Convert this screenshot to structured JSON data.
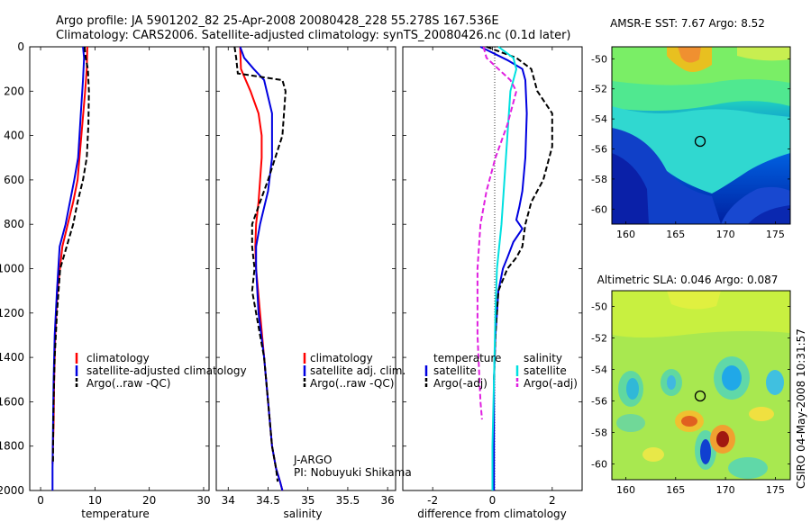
{
  "header": {
    "line1": "Argo profile: JA 5901202_82 25-Apr-2008 20080428_228 55.278S 167.536E",
    "line2": "Climatology: CARS2006. Satellite-adjusted climatology: synTS_20080426.nc (0.1d later)"
  },
  "colors": {
    "climatology": "#ff0000",
    "satellite": "#0000e0",
    "argo": "#000000",
    "sat_diff_salinity": "#00e0e0",
    "argo_diff_salinity": "#e020e0"
  },
  "y_axis": {
    "label": "",
    "range": [
      0,
      2000
    ],
    "ticks": [
      "0",
      "200",
      "400",
      "600",
      "800",
      "1000",
      "1200",
      "1400",
      "1600",
      "1800",
      "2000"
    ],
    "inverted": true
  },
  "panels": [
    {
      "id": "temperature",
      "xlabel": "temperature",
      "xlim": [
        -2,
        31
      ],
      "xticks": [
        "0",
        "10",
        "20",
        "30"
      ],
      "legend": [
        "climatology",
        "satellite-adjusted climatology",
        "Argo(..raw -QC)"
      ]
    },
    {
      "id": "salinity",
      "xlabel": "salinity",
      "xlim": [
        33.85,
        36.1
      ],
      "xticks": [
        "34",
        "34.5",
        "35",
        "35.5",
        "36"
      ],
      "legend": [
        "climatology",
        "satellite adj. clim.",
        "Argo(..raw -QC)"
      ],
      "annotation": [
        "J-ARGO",
        "PI: Nobuyuki Shikama"
      ]
    },
    {
      "id": "difference",
      "xlabel": "difference from climatology",
      "xlim": [
        -3.0,
        3.0
      ],
      "xticks": [
        "-2",
        "0",
        "2"
      ],
      "legend_headers": [
        "temperature",
        "salinity"
      ],
      "legend_left": [
        "satellite",
        "Argo(-adj)"
      ],
      "legend_right": [
        "satellite",
        "Argo(-adj)"
      ]
    }
  ],
  "maps": [
    {
      "id": "sst",
      "title": "AMSR-E SST: 7.67 Argo: 8.52",
      "yticks": [
        "-50",
        "-52",
        "-54",
        "-56",
        "-58",
        "-60"
      ],
      "xticks": [
        "160",
        "165",
        "170",
        "175"
      ],
      "profile_location": {
        "lon": 167.536,
        "lat": -55.278
      }
    },
    {
      "id": "sla",
      "title": "Altimetric SLA: 0.046 Argo: 0.087",
      "yticks": [
        "-50",
        "-52",
        "-54",
        "-56",
        "-58",
        "-60"
      ],
      "xticks": [
        "160",
        "165",
        "170",
        "175"
      ],
      "profile_location": {
        "lon": 167.536,
        "lat": -55.278
      }
    }
  ],
  "credit": "CSIRO 04-May-2008 10:31:57",
  "chart_data": [
    {
      "type": "line",
      "panel": "temperature",
      "xlabel": "temperature",
      "ylabel": "",
      "xlim": [
        -2,
        31
      ],
      "ylim": [
        2000,
        0
      ],
      "series": [
        {
          "name": "climatology",
          "style": "solid",
          "color": "#ff0000",
          "x": [
            8.6,
            8.5,
            8.2,
            7.5,
            6.8,
            6.0,
            5.0,
            4.0,
            3.1,
            2.7,
            2.5,
            2.4,
            2.2
          ],
          "y": [
            0,
            100,
            200,
            400,
            600,
            700,
            800,
            900,
            1100,
            1300,
            1500,
            1700,
            1880
          ]
        },
        {
          "name": "satellite-adjusted climatology",
          "style": "solid",
          "color": "#0000e0",
          "x": [
            7.8,
            8.0,
            7.8,
            7.4,
            6.9,
            6.2,
            5.4,
            4.6,
            3.5,
            3.0,
            2.6,
            2.4,
            2.3,
            2.2,
            2.2
          ],
          "y": [
            0,
            50,
            150,
            300,
            500,
            600,
            700,
            800,
            900,
            1100,
            1300,
            1500,
            1700,
            1900,
            2000
          ]
        },
        {
          "name": "Argo(..raw -QC)",
          "style": "dashed",
          "color": "#000000",
          "x": [
            8.1,
            8.3,
            8.7,
            8.9,
            8.8,
            8.5,
            7.8,
            6.8,
            6.0,
            4.8,
            3.6,
            3.0,
            2.6,
            2.4,
            2.3,
            2.3
          ],
          "y": [
            0,
            50,
            100,
            200,
            350,
            500,
            600,
            700,
            800,
            900,
            1000,
            1200,
            1400,
            1600,
            1800,
            1880
          ]
        }
      ]
    },
    {
      "type": "line",
      "panel": "salinity",
      "xlabel": "salinity",
      "ylabel": "",
      "xlim": [
        33.85,
        36.1
      ],
      "ylim": [
        2000,
        0
      ],
      "series": [
        {
          "name": "climatology",
          "style": "solid",
          "color": "#ff0000",
          "x": [
            34.15,
            34.16,
            34.28,
            34.38,
            34.42,
            34.42,
            34.38,
            34.35,
            34.34,
            34.35,
            34.4,
            34.45,
            34.5,
            34.55,
            34.6,
            34.65,
            34.68
          ],
          "y": [
            0,
            100,
            200,
            300,
            400,
            500,
            700,
            800,
            900,
            1000,
            1200,
            1400,
            1600,
            1800,
            1900,
            1960,
            2000
          ]
        },
        {
          "name": "satellite adj. clim.",
          "style": "solid",
          "color": "#0000e0",
          "x": [
            34.15,
            34.2,
            34.32,
            34.45,
            34.55,
            34.55,
            34.5,
            34.4,
            34.35,
            34.35,
            34.38,
            34.45,
            34.5,
            34.55,
            34.6,
            34.65,
            34.68
          ],
          "y": [
            0,
            50,
            100,
            150,
            300,
            500,
            650,
            800,
            900,
            1000,
            1200,
            1400,
            1600,
            1800,
            1900,
            1960,
            2000
          ]
        },
        {
          "name": "Argo(..raw -QC)",
          "style": "dashed",
          "color": "#000000",
          "x": [
            34.08,
            34.1,
            34.12,
            34.68,
            34.72,
            34.68,
            34.5,
            34.4,
            34.3,
            34.3,
            34.33,
            34.3,
            34.35,
            34.4,
            34.45,
            34.5,
            34.55,
            34.6,
            34.62
          ],
          "y": [
            0,
            50,
            120,
            150,
            200,
            400,
            600,
            700,
            800,
            900,
            1000,
            1100,
            1200,
            1300,
            1400,
            1600,
            1800,
            1900,
            1960
          ]
        }
      ]
    },
    {
      "type": "line",
      "panel": "difference",
      "xlabel": "difference from climatology",
      "ylabel": "",
      "xlim": [
        -3.0,
        3.0
      ],
      "ylim": [
        2000,
        0
      ],
      "series": [
        {
          "name": "satellite (temperature)",
          "style": "solid",
          "color": "#0000e0",
          "x": [
            -0.4,
            0.5,
            1.0,
            1.1,
            1.15,
            1.1,
            1.0,
            0.9,
            0.85,
            0.8,
            1.0,
            0.7,
            0.5,
            0.35,
            0.2,
            0.1,
            0.05,
            0.05
          ],
          "y": [
            0,
            60,
            100,
            150,
            300,
            500,
            650,
            720,
            750,
            780,
            820,
            880,
            950,
            1000,
            1100,
            1300,
            1500,
            2000
          ]
        },
        {
          "name": "Argo(-adj) (temperature)",
          "style": "dashed",
          "color": "#000000",
          "x": [
            -0.2,
            0.8,
            1.3,
            1.5,
            2.0,
            2.0,
            1.7,
            1.3,
            1.1,
            1.0,
            0.8,
            0.5,
            0.2,
            0.1,
            0.05
          ],
          "y": [
            0,
            50,
            100,
            200,
            300,
            450,
            600,
            700,
            800,
            900,
            950,
            1000,
            1100,
            1300,
            1500
          ]
        },
        {
          "name": "satellite (salinity)",
          "style": "solid",
          "color": "#00e0e0",
          "x": [
            0.2,
            0.7,
            0.8,
            0.6,
            0.5,
            0.4,
            0.3,
            0.15,
            0.1,
            0.05,
            0.0,
            0.0
          ],
          "y": [
            0,
            50,
            100,
            200,
            400,
            600,
            800,
            1000,
            1200,
            1500,
            1800,
            2000
          ]
        },
        {
          "name": "Argo(-adj) (salinity)",
          "style": "dashed",
          "color": "#e020e0",
          "x": [
            -0.3,
            -0.2,
            0.2,
            0.6,
            0.8,
            0.5,
            0.1,
            -0.2,
            -0.4,
            -0.5,
            -0.5,
            -0.4,
            -0.35
          ],
          "y": [
            0,
            50,
            100,
            150,
            200,
            350,
            500,
            650,
            800,
            1000,
            1300,
            1600,
            1680
          ]
        }
      ]
    }
  ]
}
